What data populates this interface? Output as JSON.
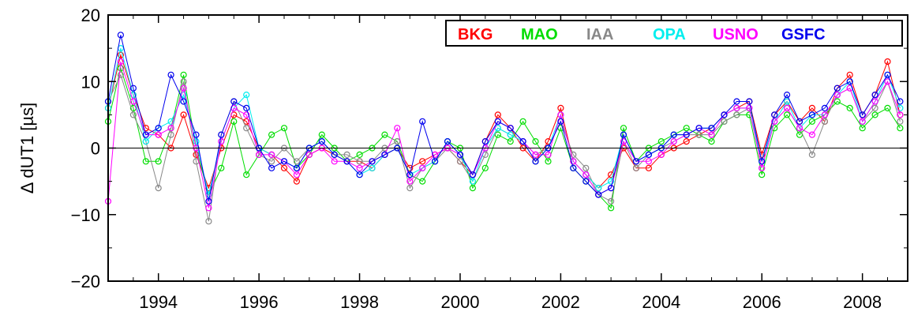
{
  "chart_data": {
    "type": "line",
    "title": "",
    "xlabel": "",
    "ylabel": "Δ dUT1 [µs]",
    "xlim": [
      1993.0,
      2008.9
    ],
    "ylim": [
      -20,
      20
    ],
    "x_ticks": [
      1994,
      1996,
      1998,
      2000,
      2002,
      2004,
      2006,
      2008
    ],
    "x_tick_labels": [
      "1994",
      "1996",
      "1998",
      "2000",
      "2002",
      "2004",
      "2006",
      "2008"
    ],
    "y_ticks": [
      -20,
      -10,
      0,
      10,
      20
    ],
    "y_tick_labels": [
      "−20",
      "−10",
      "0",
      "10",
      "20"
    ],
    "zero_line": true,
    "grid": false,
    "marker": "open-circle",
    "legend_position": "top-right",
    "series": [
      {
        "name": "BKG",
        "color": "#ff0000",
        "x": [
          1993.0,
          1993.25,
          1993.5,
          1993.75,
          1994.0,
          1994.25,
          1994.5,
          1994.75,
          1995.0,
          1995.25,
          1995.5,
          1995.75,
          1996.0,
          1996.25,
          1996.5,
          1996.75,
          1997.0,
          1997.25,
          1997.5,
          1997.75,
          1998.0,
          1998.25,
          1998.5,
          1998.75,
          1999.0,
          1999.25,
          1999.5,
          1999.75,
          2000.0,
          2000.25,
          2000.5,
          2000.75,
          2001.0,
          2001.25,
          2001.5,
          2001.75,
          2002.0,
          2002.25,
          2002.5,
          2002.75,
          2003.0,
          2003.25,
          2003.5,
          2003.75,
          2004.0,
          2004.25,
          2004.5,
          2004.75,
          2005.0,
          2005.25,
          2005.5,
          2005.75,
          2006.0,
          2006.25,
          2006.5,
          2006.75,
          2007.0,
          2007.25,
          2007.5,
          2007.75,
          2008.0,
          2008.25,
          2008.5,
          2008.75
        ],
        "values": [
          6,
          14,
          8,
          3,
          2,
          0,
          5,
          -1,
          -6,
          0,
          5,
          4,
          0,
          -1,
          -3,
          -5,
          -1,
          0,
          -1,
          -2,
          -2,
          -3,
          -1,
          0,
          -3,
          -2,
          -1,
          0,
          -2,
          -4,
          1,
          5,
          3,
          0,
          -2,
          1,
          6,
          -2,
          -4,
          -6,
          -4,
          0,
          -3,
          -3,
          -1,
          0,
          1,
          2,
          3,
          5,
          6,
          7,
          -1,
          5,
          7,
          4,
          6,
          4,
          9,
          11,
          5,
          8,
          13,
          5
        ]
      },
      {
        "name": "MAO",
        "color": "#00dd00",
        "x": [
          1993.0,
          1993.25,
          1993.5,
          1993.75,
          1994.0,
          1994.25,
          1994.5,
          1994.75,
          1995.0,
          1995.25,
          1995.5,
          1995.75,
          1996.0,
          1996.25,
          1996.5,
          1996.75,
          1997.0,
          1997.25,
          1997.5,
          1997.75,
          1998.0,
          1998.25,
          1998.5,
          1998.75,
          1999.0,
          1999.25,
          1999.5,
          1999.75,
          2000.0,
          2000.25,
          2000.5,
          2000.75,
          2001.0,
          2001.25,
          2001.5,
          2001.75,
          2002.0,
          2002.25,
          2002.5,
          2002.75,
          2003.0,
          2003.25,
          2003.5,
          2003.75,
          2004.0,
          2004.25,
          2004.5,
          2004.75,
          2005.0,
          2005.25,
          2005.5,
          2005.75,
          2006.0,
          2006.25,
          2006.5,
          2006.75,
          2007.0,
          2007.25,
          2007.5,
          2007.75,
          2008.0,
          2008.25,
          2008.5,
          2008.75
        ],
        "values": [
          4,
          12,
          6,
          -2,
          -2,
          3,
          11,
          0,
          -7,
          -3,
          4,
          -4,
          -1,
          2,
          3,
          -3,
          -1,
          2,
          0,
          -2,
          -1,
          0,
          2,
          1,
          -4,
          -5,
          -2,
          1,
          0,
          -6,
          -3,
          2,
          1,
          4,
          1,
          -2,
          3,
          -3,
          -5,
          -7,
          -9,
          3,
          -2,
          0,
          1,
          2,
          3,
          2,
          1,
          4,
          5,
          5,
          -4,
          3,
          5,
          2,
          4,
          5,
          7,
          6,
          3,
          5,
          6,
          3
        ]
      },
      {
        "name": "IAA",
        "color": "#888888",
        "x": [
          1993.0,
          1993.25,
          1993.5,
          1993.75,
          1994.0,
          1994.25,
          1994.5,
          1994.75,
          1995.0,
          1995.25,
          1995.5,
          1995.75,
          1996.0,
          1996.25,
          1996.5,
          1996.75,
          1997.0,
          1997.25,
          1997.5,
          1997.75,
          1998.0,
          1998.25,
          1998.5,
          1998.75,
          1999.0,
          1999.25,
          1999.5,
          1999.75,
          2000.0,
          2000.25,
          2000.5,
          2000.75,
          2001.0,
          2001.25,
          2001.5,
          2001.75,
          2002.0,
          2002.25,
          2002.5,
          2002.75,
          2003.0,
          2003.25,
          2003.5,
          2003.75,
          2004.0,
          2004.25,
          2004.5,
          2004.75,
          2005.0,
          2005.25,
          2005.5,
          2005.75,
          2006.0,
          2006.25,
          2006.5,
          2006.75,
          2007.0,
          2007.25,
          2007.5,
          2007.75,
          2008.0,
          2008.25,
          2008.5,
          2008.75
        ],
        "values": [
          7,
          11,
          5,
          1,
          -6,
          2,
          10,
          -2,
          -11,
          2,
          7,
          3,
          -1,
          -2,
          0,
          -2,
          0,
          1,
          -1,
          -1,
          -2,
          -2,
          0,
          1,
          -6,
          -3,
          -2,
          0,
          -2,
          -5,
          -1,
          3,
          2,
          1,
          -1,
          0,
          4,
          -1,
          -3,
          -7,
          -8,
          1,
          -3,
          -1,
          0,
          1,
          2,
          2,
          2,
          4,
          5,
          6,
          -3,
          4,
          6,
          3,
          -1,
          4,
          8,
          9,
          4,
          6,
          10,
          4
        ]
      },
      {
        "name": "OPA",
        "color": "#00eeee",
        "x": [
          1993.0,
          1993.25,
          1993.5,
          1993.75,
          1994.0,
          1994.25,
          1994.5,
          1994.75,
          1995.0,
          1995.25,
          1995.5,
          1995.75,
          1996.0,
          1996.25,
          1996.5,
          1996.75,
          1997.0,
          1997.25,
          1997.5,
          1997.75,
          1998.0,
          1998.25,
          1998.5,
          1998.75,
          1999.0,
          1999.25,
          1999.5,
          1999.75,
          2000.0,
          2000.25,
          2000.5,
          2000.75,
          2001.0,
          2001.25,
          2001.5,
          2001.75,
          2002.0,
          2002.25,
          2002.5,
          2002.75,
          2003.0,
          2003.25,
          2003.5,
          2003.75,
          2004.0,
          2004.25,
          2004.5,
          2004.75,
          2005.0,
          2005.25,
          2005.5,
          2005.75,
          2006.0,
          2006.25,
          2006.5,
          2006.75,
          2007.0,
          2007.25,
          2007.5,
          2007.75,
          2008.0,
          2008.25,
          2008.5,
          2008.75
        ],
        "values": [
          6,
          15,
          8,
          1,
          3,
          4,
          8,
          1,
          -7,
          1,
          6,
          8,
          0,
          -1,
          -2,
          -3,
          0,
          1,
          -1,
          -2,
          -4,
          -3,
          -1,
          0,
          -4,
          -3,
          -2,
          1,
          -1,
          -5,
          0,
          3,
          2,
          1,
          -2,
          0,
          5,
          -2,
          -4,
          -6,
          -5,
          2,
          -2,
          -1,
          0,
          2,
          2,
          3,
          3,
          5,
          6,
          6,
          -2,
          4,
          7,
          3,
          5,
          5,
          8,
          10,
          4,
          7,
          11,
          6
        ]
      },
      {
        "name": "USNO",
        "color": "#ff00ff",
        "x": [
          1993.0,
          1993.25,
          1993.5,
          1993.75,
          1994.0,
          1994.25,
          1994.5,
          1994.75,
          1995.0,
          1995.25,
          1995.5,
          1995.75,
          1996.0,
          1996.25,
          1996.5,
          1996.75,
          1997.0,
          1997.25,
          1997.5,
          1997.75,
          1998.0,
          1998.25,
          1998.5,
          1998.75,
          1999.0,
          1999.25,
          1999.5,
          1999.75,
          2000.0,
          2000.25,
          2000.5,
          2000.75,
          2001.0,
          2001.25,
          2001.5,
          2001.75,
          2002.0,
          2002.25,
          2002.5,
          2002.75,
          2003.0,
          2003.25,
          2003.5,
          2003.75,
          2004.0,
          2004.25,
          2004.5,
          2004.75,
          2005.0,
          2005.25,
          2005.5,
          2005.75,
          2006.0,
          2006.25,
          2006.5,
          2006.75,
          2007.0,
          2007.25,
          2007.5,
          2007.75,
          2008.0,
          2008.25,
          2008.5,
          2008.75
        ],
        "values": [
          -8,
          13,
          7,
          2,
          2,
          3,
          9,
          0,
          -9,
          1,
          6,
          5,
          -1,
          -1,
          -2,
          -4,
          -1,
          0,
          -2,
          -2,
          -3,
          -2,
          -1,
          3,
          -5,
          -3,
          -1,
          0,
          -1,
          -4,
          0,
          4,
          3,
          1,
          -1,
          -1,
          5,
          -2,
          -4,
          -7,
          -6,
          1,
          -2,
          -2,
          -1,
          1,
          2,
          3,
          2,
          5,
          6,
          6,
          -3,
          4,
          6,
          3,
          2,
          5,
          8,
          9,
          4,
          7,
          10,
          5
        ]
      },
      {
        "name": "GSFC",
        "color": "#0000ee",
        "x": [
          1993.0,
          1993.25,
          1993.5,
          1993.75,
          1994.0,
          1994.25,
          1994.5,
          1994.75,
          1995.0,
          1995.25,
          1995.5,
          1995.75,
          1996.0,
          1996.25,
          1996.5,
          1996.75,
          1997.0,
          1997.25,
          1997.5,
          1997.75,
          1998.0,
          1998.25,
          1998.5,
          1998.75,
          1999.0,
          1999.25,
          1999.5,
          1999.75,
          2000.0,
          2000.25,
          2000.5,
          2000.75,
          2001.0,
          2001.25,
          2001.5,
          2001.75,
          2002.0,
          2002.25,
          2002.5,
          2002.75,
          2003.0,
          2003.25,
          2003.5,
          2003.75,
          2004.0,
          2004.25,
          2004.5,
          2004.75,
          2005.0,
          2005.25,
          2005.5,
          2005.75,
          2006.0,
          2006.25,
          2006.5,
          2006.75,
          2007.0,
          2007.25,
          2007.5,
          2007.75,
          2008.0,
          2008.25,
          2008.5,
          2008.75
        ],
        "values": [
          7,
          17,
          9,
          2,
          3,
          11,
          7,
          2,
          -8,
          2,
          7,
          6,
          0,
          -3,
          -2,
          -3,
          0,
          1,
          -1,
          -2,
          -4,
          -2,
          -1,
          0,
          -4,
          4,
          -2,
          1,
          -1,
          -4,
          1,
          4,
          3,
          1,
          -2,
          0,
          4,
          -3,
          -5,
          -7,
          -6,
          2,
          -2,
          -1,
          0,
          2,
          2,
          3,
          3,
          5,
          7,
          7,
          -2,
          5,
          8,
          4,
          5,
          6,
          9,
          10,
          5,
          8,
          11,
          7
        ]
      }
    ]
  }
}
